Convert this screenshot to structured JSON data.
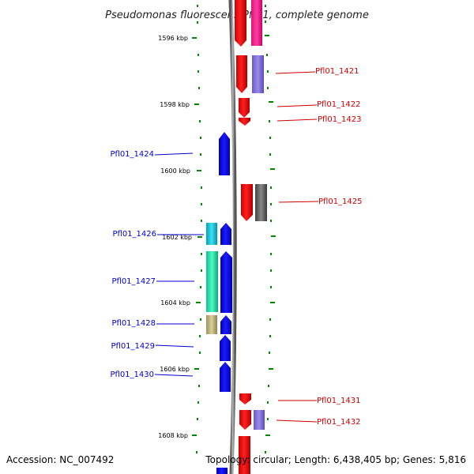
{
  "title": "Pseudomonas fluorescens Pf0-1, complete genome",
  "footer": {
    "accession": "Accession: NC_007492",
    "topology": "Topology: circular; Length: 6,438,405 bp; Genes: 5,816"
  },
  "colors": {
    "forward_label": "#cc0000",
    "reverse_label": "#0000cc",
    "backbone": "#888888",
    "tick": "#008800"
  },
  "position_labels": [
    "1596 kbp",
    "1598 kbp",
    "1600 kbp",
    "1602 kbp",
    "1604 kbp",
    "1606 kbp",
    "1608 kbp"
  ],
  "right_genes": [
    {
      "label": "Pfl01_1421"
    },
    {
      "label": "Pfl01_1422"
    },
    {
      "label": "Pfl01_1423"
    },
    {
      "label": "Pfl01_1425"
    },
    {
      "label": "Pfl01_1431"
    },
    {
      "label": "Pfl01_1432"
    }
  ],
  "left_genes": [
    {
      "label": "Pfl01_1424"
    },
    {
      "label": "Pfl01_1426"
    },
    {
      "label": "Pfl01_1427"
    },
    {
      "label": "Pfl01_1428"
    },
    {
      "label": "Pfl01_1429"
    },
    {
      "label": "Pfl01_1430"
    }
  ]
}
